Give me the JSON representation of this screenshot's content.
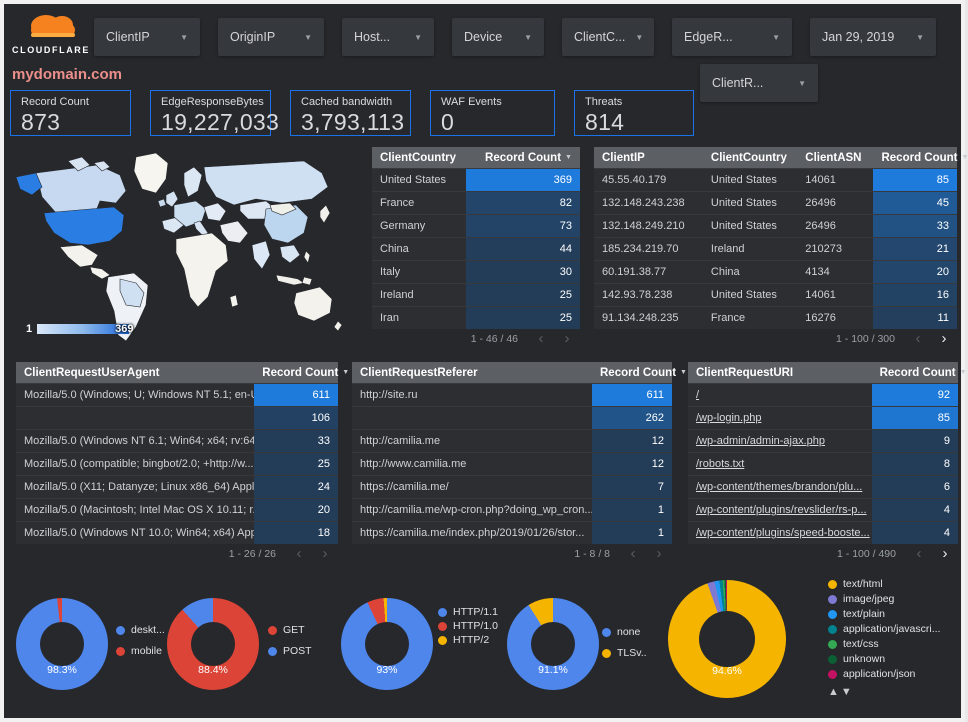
{
  "brand": {
    "name": "CLOUDFLARE"
  },
  "page_title": "mydomain.com",
  "filters": {
    "row1": [
      "ClientIP",
      "OriginIP",
      "Host...",
      "Device",
      "ClientC...",
      "EdgeR..."
    ],
    "date": "Jan 29, 2019",
    "row2": [
      "ClientR..."
    ]
  },
  "scorecards": [
    {
      "label": "Record Count",
      "value": "873"
    },
    {
      "label": "EdgeResponseBytes",
      "value": "19,227,033"
    },
    {
      "label": "Cached bandwidth",
      "value": "3,793,113"
    },
    {
      "label": "WAF Events",
      "value": "0"
    },
    {
      "label": "Threats",
      "value": "814"
    }
  ],
  "map": {
    "legend_min": "1",
    "legend_max": "369"
  },
  "colors": {
    "accent_blue": "#1a73e8",
    "bar_high": "#1e7bdc",
    "bar_low": "#24364a",
    "title_pink": "#ec8f8a",
    "cloudflare_orange": "#f6821f"
  },
  "tables": [
    {
      "name": "client-country-table",
      "columns": [
        {
          "label": "ClientCountry",
          "type": "text",
          "width": "45%"
        },
        {
          "label": "Record Count",
          "type": "bar",
          "width": "55%",
          "sort": true
        }
      ],
      "rows": [
        [
          "United States",
          "369"
        ],
        [
          "France",
          "82"
        ],
        [
          "Germany",
          "73"
        ],
        [
          "China",
          "44"
        ],
        [
          "Italy",
          "30"
        ],
        [
          "Ireland",
          "25"
        ],
        [
          "Iran",
          "25"
        ]
      ],
      "bar_max": 369,
      "pagination": "1 - 46 / 46",
      "prev_enabled": false,
      "next_enabled": false
    },
    {
      "name": "client-ip-table",
      "columns": [
        {
          "label": "ClientIP",
          "type": "text",
          "width": "30%"
        },
        {
          "label": "ClientCountry",
          "type": "text",
          "width": "26%"
        },
        {
          "label": "ClientASN",
          "type": "text",
          "width": "21%"
        },
        {
          "label": "Record Count",
          "type": "bar",
          "width": "23%",
          "sort": true
        }
      ],
      "rows": [
        [
          "45.55.40.179",
          "United States",
          "14061",
          "85"
        ],
        [
          "132.148.243.238",
          "United States",
          "26496",
          "45"
        ],
        [
          "132.148.249.210",
          "United States",
          "26496",
          "33"
        ],
        [
          "185.234.219.70",
          "Ireland",
          "210273",
          "21"
        ],
        [
          "60.191.38.77",
          "China",
          "4134",
          "20"
        ],
        [
          "142.93.78.238",
          "United States",
          "14061",
          "16"
        ],
        [
          "91.134.248.235",
          "France",
          "16276",
          "11"
        ]
      ],
      "bar_max": 85,
      "pagination": "1 - 100 / 300",
      "prev_enabled": false,
      "next_enabled": true
    },
    {
      "name": "user-agent-table",
      "columns": [
        {
          "label": "ClientRequestUserAgent",
          "type": "text",
          "width": "74%"
        },
        {
          "label": "Record Count",
          "type": "bar",
          "width": "26%",
          "sort": true
        }
      ],
      "rows": [
        [
          "Mozilla/5.0 (Windows; U; Windows NT 5.1; en-U...",
          "611"
        ],
        [
          "",
          "106"
        ],
        [
          "Mozilla/5.0 (Windows NT 6.1; Win64; x64; rv:64...",
          "33"
        ],
        [
          "Mozilla/5.0 (compatible; bingbot/2.0; +http://w...",
          "25"
        ],
        [
          "Mozilla/5.0 (X11; Datanyze; Linux x86_64) Appl...",
          "24"
        ],
        [
          "Mozilla/5.0 (Macintosh; Intel Mac OS X 10.11; r...",
          "20"
        ],
        [
          "Mozilla/5.0 (Windows NT 10.0; Win64; x64) App...",
          "18"
        ]
      ],
      "bar_max": 611,
      "pagination": "1 - 26 / 26",
      "prev_enabled": false,
      "next_enabled": false
    },
    {
      "name": "referer-table",
      "columns": [
        {
          "label": "ClientRequestReferer",
          "type": "text",
          "width": "75%"
        },
        {
          "label": "Record Count",
          "type": "bar",
          "width": "25%",
          "sort": true
        }
      ],
      "rows": [
        [
          "http://site.ru",
          "611"
        ],
        [
          "",
          "262"
        ],
        [
          "http://camilia.me",
          "12"
        ],
        [
          "http://www.camilia.me",
          "12"
        ],
        [
          "https://camilia.me/",
          "7"
        ],
        [
          "http://camilia.me/wp-cron.php?doing_wp_cron...",
          "1"
        ],
        [
          "https://camilia.me/index.php/2019/01/26/stor...",
          "1"
        ]
      ],
      "bar_max": 611,
      "pagination": "1 - 8 / 8",
      "prev_enabled": false,
      "next_enabled": false
    },
    {
      "name": "uri-table",
      "link_col": 0,
      "columns": [
        {
          "label": "ClientRequestURI",
          "type": "text",
          "width": "68%"
        },
        {
          "label": "Record Count",
          "type": "bar",
          "width": "32%",
          "sort": true
        }
      ],
      "rows": [
        [
          "/",
          "92"
        ],
        [
          "/wp-login.php",
          "85"
        ],
        [
          "/wp-admin/admin-ajax.php",
          "9"
        ],
        [
          "/robots.txt",
          "8"
        ],
        [
          "/wp-content/themes/brandon/plu...",
          "6"
        ],
        [
          "/wp-content/plugins/revslider/rs-p...",
          "4"
        ],
        [
          "/wp-content/plugins/speed-booste...",
          "4"
        ]
      ],
      "bar_max": 92,
      "pagination": "1 - 100 / 490",
      "prev_enabled": false,
      "next_enabled": true
    }
  ],
  "chart_data": [
    {
      "type": "pie",
      "name": "device-type-donut",
      "percent_label": "98.3%",
      "legend_position": "right",
      "slices": [
        {
          "label": "deskt...",
          "value": 98.3,
          "color": "#4e86ec"
        },
        {
          "label": "mobile",
          "value": 1.7,
          "color": "#db4437"
        }
      ]
    },
    {
      "type": "pie",
      "name": "request-method-donut",
      "percent_label": "88.4%",
      "legend_position": "right",
      "slices": [
        {
          "label": "GET",
          "value": 88.4,
          "color": "#db4437"
        },
        {
          "label": "POST",
          "value": 11.6,
          "color": "#4e86ec"
        }
      ]
    },
    {
      "type": "pie",
      "name": "http-protocol-donut",
      "percent_label": "93%",
      "legend_position": "right",
      "slices": [
        {
          "label": "HTTP/1.1",
          "value": 93,
          "color": "#4e86ec"
        },
        {
          "label": "HTTP/1.0",
          "value": 5.8,
          "color": "#db4437"
        },
        {
          "label": "HTTP/2",
          "value": 1.2,
          "color": "#f5b400"
        }
      ]
    },
    {
      "type": "pie",
      "name": "tls-version-donut",
      "percent_label": "91.1%",
      "legend_position": "right",
      "slices": [
        {
          "label": "none",
          "value": 91.1,
          "color": "#4e86ec"
        },
        {
          "label": "TLSv..",
          "value": 8.9,
          "color": "#f5b400"
        }
      ]
    },
    {
      "type": "pie",
      "name": "content-type-donut",
      "percent_label": "94.6%",
      "legend_position": "right",
      "legend_nav": true,
      "slices": [
        {
          "label": "text/html",
          "value": 94.6,
          "color": "#f5b400"
        },
        {
          "label": "image/jpeg",
          "value": 2.0,
          "color": "#7e79d2"
        },
        {
          "label": "text/plain",
          "value": 1.3,
          "color": "#2196f3"
        },
        {
          "label": "application/javascri...",
          "value": 0.9,
          "color": "#00838f"
        },
        {
          "label": "text/css",
          "value": 0.5,
          "color": "#34a853"
        },
        {
          "label": "unknown",
          "value": 0.4,
          "color": "#0c5e35"
        },
        {
          "label": "application/json",
          "value": 0.3,
          "color": "#c51162"
        }
      ]
    }
  ],
  "legend_nav_icons": "▲▼"
}
